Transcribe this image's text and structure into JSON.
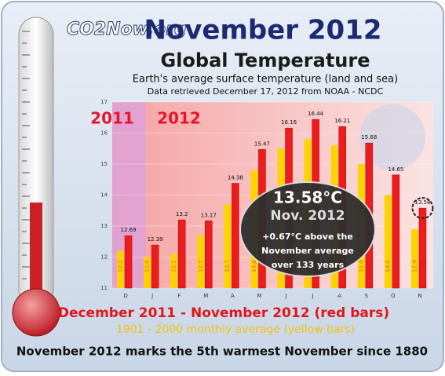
{
  "chart_data": {
    "type": "bar",
    "logo": "CO2Now.org",
    "title": "November 2012",
    "subtitle": "Global Temperature",
    "description": "Earth's average surface temperature (land and sea)",
    "source": "Data retrieved December 17, 2012 from NOAA - NCDC",
    "categories": [
      "D",
      "J",
      "F",
      "M",
      "A",
      "M",
      "J",
      "J",
      "A",
      "S",
      "O",
      "N"
    ],
    "period_labels": [
      "2011",
      "2012"
    ],
    "series": [
      {
        "name": "December 2011 - November 2012 (red bars)",
        "color": "#ee1c1c",
        "values": [
          12.69,
          12.39,
          13.2,
          13.17,
          14.38,
          15.47,
          16.16,
          16.44,
          16.21,
          15.68,
          14.65,
          13.58
        ]
      },
      {
        "name": "1901 - 2000 monthly average (yellow bars)",
        "color": "#ffd200",
        "values": [
          12.2,
          12,
          12.1,
          12.7,
          13.7,
          14.8,
          15.5,
          15.8,
          15.6,
          15,
          14,
          12.9
        ],
        "value_labels": [
          "12.2",
          "12.0",
          "12.1",
          "12.7",
          "13.7",
          "14.8",
          "15.5",
          "15.8",
          "15.6",
          "15.0",
          "14.0",
          "12.9"
        ]
      }
    ],
    "ylim": [
      11,
      17
    ],
    "yticks": [
      11,
      12,
      13,
      14,
      15,
      16,
      17
    ],
    "callout": [
      "13.58°C",
      "Nov. 2012",
      "+0.67°C above the",
      "November average",
      "over 133 years"
    ],
    "footnote": "November 2012 marks the 5th warmest November since 1880"
  }
}
